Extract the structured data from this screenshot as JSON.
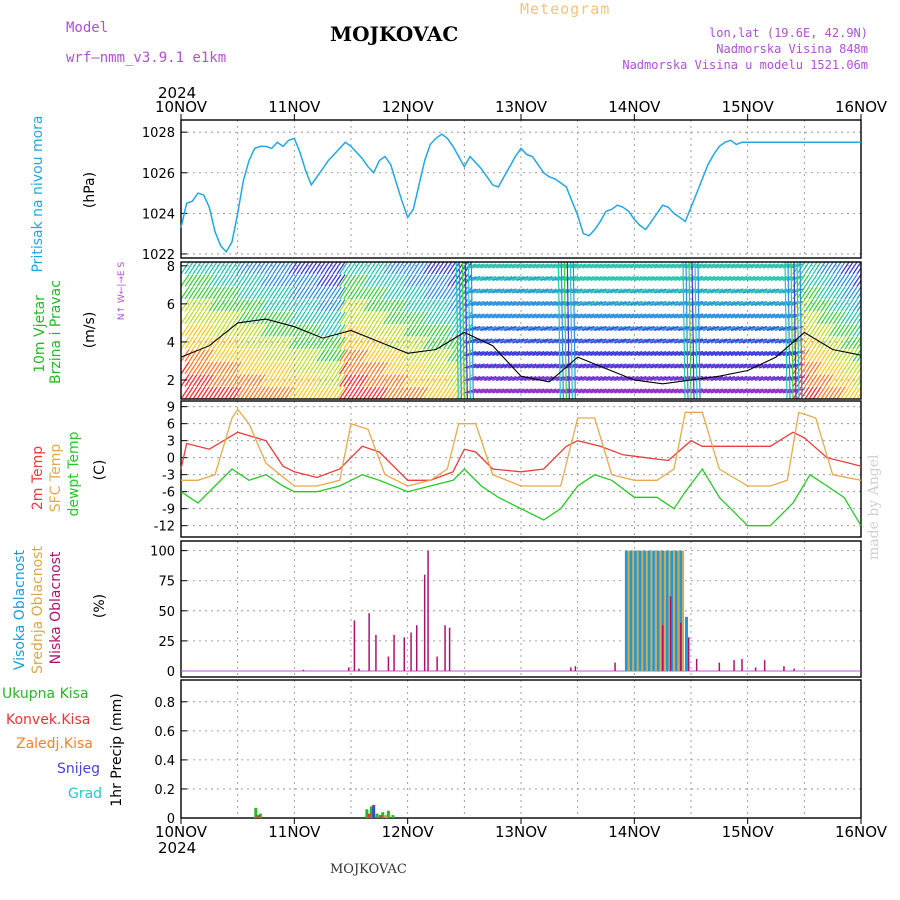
{
  "header": {
    "station": "MOJKOVAC",
    "meteogram": "Meteogram",
    "model_label": "Model",
    "model_value": "wrf–nmm_v3.9.1  e1km",
    "lonlat": "lon,lat (19.6E, 42.9N)",
    "altitude": "Nadmorska Visina 848m",
    "model_altitude": "Nadmorska Visina u modelu 1521.06m",
    "year_top": "2024",
    "year_bottom": "2024",
    "footer_station": "MOJKOVAC",
    "credit": "made by Angel"
  },
  "axis_labels": {
    "pressure": [
      "Pritisak na nivou mora",
      "(hPa)"
    ],
    "wind": [
      "10m Vjetar",
      "Brzina i Pravac",
      "(m/s)"
    ],
    "compass": "N↑ W←|→E S",
    "temp": [
      "2m Temp",
      "SFC Temp",
      "dewpt Temp",
      "(C)"
    ],
    "cloud": [
      "Visoka Oblacnost",
      "Srednja Oblacnost",
      "Niska Oblacnost",
      "(%)"
    ],
    "precip": [
      "Ukupna Kisa",
      "Konvek.Kisa",
      "Zaledj.Kisa",
      "Snijeg",
      "Grad",
      "1hr Precip (mm)"
    ]
  },
  "colors": {
    "pressure": "#1fa7e8",
    "wind_speed": "#000000",
    "temp2m": "#ee3b3b",
    "sfc": "#e8a94a",
    "dewpt": "#22cc22",
    "high_cloud": "#1a9cdc",
    "mid_cloud": "#d9a84a",
    "low_cloud": "#b0116e",
    "total_rain": "#22bb22",
    "conv_rain": "#ee3333",
    "frz_rain": "#ff7f27",
    "snow": "#4444dd",
    "hail": "#22c7c7"
  },
  "chart_data": [
    {
      "type": "line",
      "panel": "pressure",
      "x_ticks": [
        "10NOV",
        "11NOV",
        "12NOV",
        "13NOV",
        "14NOV",
        "15NOV",
        "16NOV"
      ],
      "ylim": [
        1021.8,
        1028.6
      ],
      "yticks": [
        1022,
        1024,
        1026,
        1028
      ],
      "grid": true,
      "series": [
        {
          "x": [
            0,
            0.05,
            0.1,
            0.15,
            0.2,
            0.25,
            0.3,
            0.35,
            0.4,
            0.45,
            0.5,
            0.55,
            0.6,
            0.65,
            0.7,
            0.75,
            0.8,
            0.85,
            0.9,
            0.95,
            1,
            1.05,
            1.1,
            1.15,
            1.2,
            1.25,
            1.3,
            1.35,
            1.4,
            1.45,
            1.5,
            1.55,
            1.6,
            1.65,
            1.7,
            1.75,
            1.8,
            1.85,
            1.9,
            1.95,
            2,
            2.05,
            2.1,
            2.15,
            2.2,
            2.25,
            2.3,
            2.35,
            2.4,
            2.45,
            2.5,
            2.55,
            2.6,
            2.65,
            2.7,
            2.75,
            2.8,
            2.85,
            2.9,
            2.95,
            3,
            3.05,
            3.1,
            3.15,
            3.2,
            3.25,
            3.3,
            3.35,
            3.4,
            3.45,
            3.5,
            3.55,
            3.6,
            3.65,
            3.7,
            3.75,
            3.8,
            3.85,
            3.9,
            3.95,
            4,
            4.05,
            4.1,
            4.15,
            4.2,
            4.25,
            4.3,
            4.35,
            4.4,
            4.45,
            4.5,
            4.55,
            4.6,
            4.65,
            4.7,
            4.75,
            4.8,
            4.85,
            4.9,
            4.95,
            5,
            5.05,
            5.1,
            5.15,
            5.2,
            5.25,
            5.3,
            5.35,
            5.4,
            5.45,
            5.5,
            5.55,
            5.6,
            5.65,
            5.7,
            5.75,
            5.8,
            5.85,
            5.9,
            5.95,
            6
          ],
          "y": [
            1023.3,
            1024.5,
            1024.6,
            1025.0,
            1024.9,
            1024.3,
            1023.1,
            1022.4,
            1022.1,
            1022.6,
            1024.0,
            1025.6,
            1026.6,
            1027.2,
            1027.3,
            1027.3,
            1027.2,
            1027.5,
            1027.3,
            1027.6,
            1027.7,
            1027.0,
            1026.1,
            1025.4,
            1025.8,
            1026.2,
            1026.6,
            1026.9,
            1027.2,
            1027.5,
            1027.3,
            1027.0,
            1026.7,
            1026.3,
            1026.0,
            1026.6,
            1026.8,
            1026.4,
            1025.5,
            1024.6,
            1023.8,
            1024.2,
            1025.4,
            1026.6,
            1027.4,
            1027.7,
            1027.9,
            1027.7,
            1027.3,
            1026.8,
            1026.3,
            1026.8,
            1026.5,
            1026.2,
            1025.8,
            1025.4,
            1025.3,
            1025.8,
            1026.3,
            1026.8,
            1027.2,
            1026.9,
            1026.8,
            1026.4,
            1026.0,
            1025.8,
            1025.7,
            1025.5,
            1025.3,
            1024.6,
            1023.9,
            1023.0,
            1022.9,
            1023.2,
            1023.6,
            1024.1,
            1024.2,
            1024.4,
            1024.3,
            1024.1,
            1023.7,
            1023.4,
            1023.2,
            1023.6,
            1024.0,
            1024.4,
            1024.3,
            1024.0,
            1023.8,
            1023.6,
            1024.3,
            1025.0,
            1025.7,
            1026.4,
            1026.9,
            1027.3,
            1027.5,
            1027.6,
            1027.4,
            1027.5,
            1027.5,
            1027.5,
            1027.5,
            1027.5,
            1027.5,
            1027.5,
            1027.5,
            1027.5,
            1027.5,
            1027.5,
            1027.5,
            1027.5,
            1027.5,
            1027.5,
            1027.5,
            1027.5,
            1027.5,
            1027.5,
            1027.5,
            1027.5,
            1027.5
          ]
        }
      ]
    },
    {
      "type": "line",
      "panel": "wind",
      "ylim": [
        1.0,
        8.2
      ],
      "yticks": [
        2,
        4,
        6,
        8
      ],
      "grid": true,
      "series": [
        {
          "name": "speed",
          "x": [
            0,
            0.25,
            0.5,
            0.75,
            1,
            1.25,
            1.5,
            1.75,
            2,
            2.25,
            2.5,
            2.75,
            3,
            3.25,
            3.5,
            3.75,
            4,
            4.25,
            4.5,
            4.75,
            5,
            5.25,
            5.5,
            5.75,
            6
          ],
          "y": [
            3.2,
            3.8,
            5.0,
            5.2,
            4.8,
            4.2,
            4.6,
            4.0,
            3.4,
            3.6,
            4.5,
            3.8,
            2.2,
            1.9,
            3.2,
            2.6,
            2.0,
            1.8,
            2.0,
            2.2,
            2.5,
            3.2,
            4.5,
            3.6,
            3.3
          ]
        }
      ],
      "wind_bands": [
        {
          "x0": 0.0,
          "x1": 1.4,
          "dir": "SW"
        },
        {
          "x0": 1.4,
          "x1": 2.5,
          "dir": "SW"
        },
        {
          "x0": 2.5,
          "x1": 3.4,
          "dir": "NE"
        },
        {
          "x0": 3.4,
          "x1": 4.5,
          "dir": "NE"
        },
        {
          "x0": 4.5,
          "x1": 5.4,
          "dir": "NE"
        },
        {
          "x0": 5.4,
          "x1": 6.0,
          "dir": "SW"
        }
      ]
    },
    {
      "type": "line",
      "panel": "temperature",
      "ylim": [
        -14,
        10
      ],
      "yticks": [
        9,
        6,
        3,
        0,
        -3,
        -6,
        -9,
        -12
      ],
      "grid": true,
      "series": [
        {
          "name": "2m Temp",
          "x": [
            0,
            0.05,
            0.25,
            0.5,
            0.75,
            0.9,
            1,
            1.2,
            1.4,
            1.6,
            1.75,
            2,
            2.2,
            2.4,
            2.5,
            2.6,
            2.75,
            3,
            3.2,
            3.4,
            3.5,
            3.7,
            3.9,
            4.1,
            4.3,
            4.5,
            4.6,
            4.8,
            5,
            5.2,
            5.4,
            5.5,
            5.7,
            5.9,
            6
          ],
          "y": [
            -2.0,
            2.5,
            1.5,
            4.5,
            3.0,
            -1.5,
            -2.5,
            -3.5,
            -2.0,
            2.0,
            1.0,
            -4.0,
            -4.0,
            -2.5,
            1.5,
            1.0,
            -2.0,
            -2.5,
            -2.0,
            2.0,
            3.0,
            2.0,
            0.5,
            0.0,
            -0.5,
            3.0,
            2.0,
            2.0,
            2.0,
            2.0,
            4.5,
            3.5,
            0.0,
            -1.0,
            -1.5
          ]
        },
        {
          "name": "SFC Temp",
          "x": [
            0,
            0.15,
            0.3,
            0.45,
            0.5,
            0.6,
            0.75,
            1,
            1.2,
            1.4,
            1.5,
            1.65,
            1.8,
            2,
            2.2,
            2.35,
            2.45,
            2.6,
            2.75,
            3,
            3.2,
            3.35,
            3.5,
            3.65,
            3.8,
            4,
            4.2,
            4.35,
            4.45,
            4.6,
            4.75,
            5,
            5.2,
            5.35,
            5.45,
            5.6,
            5.75,
            6
          ],
          "y": [
            -4,
            -4,
            -3,
            7,
            8.5,
            6,
            -1,
            -5,
            -5,
            -4,
            6,
            5,
            -3,
            -5,
            -4,
            -2,
            6,
            6,
            -3,
            -5,
            -5,
            -5,
            7,
            7,
            -3,
            -4,
            -4,
            -2,
            8,
            8,
            -2,
            -5,
            -5,
            -4,
            8,
            7,
            -3,
            -4
          ]
        },
        {
          "name": "dewpt Temp",
          "x": [
            0,
            0.15,
            0.3,
            0.45,
            0.6,
            0.75,
            0.9,
            1,
            1.2,
            1.4,
            1.6,
            1.75,
            2,
            2.2,
            2.4,
            2.5,
            2.65,
            2.8,
            3,
            3.2,
            3.35,
            3.5,
            3.65,
            3.8,
            4,
            4.2,
            4.35,
            4.45,
            4.6,
            4.75,
            4.9,
            5,
            5.2,
            5.4,
            5.55,
            5.7,
            5.85,
            6
          ],
          "y": [
            -6,
            -8,
            -5,
            -2,
            -4,
            -3,
            -5,
            -6,
            -6,
            -5,
            -3,
            -4,
            -6,
            -5,
            -4,
            -2,
            -5,
            -7,
            -9,
            -11,
            -9,
            -5,
            -3,
            -4,
            -7,
            -7,
            -9,
            -6,
            -2,
            -7,
            -10,
            -12,
            -12,
            -8,
            -3,
            -5,
            -7,
            -12
          ]
        }
      ]
    },
    {
      "type": "bar",
      "panel": "cloud",
      "ylim": [
        -5,
        108
      ],
      "yticks": [
        0,
        25,
        50,
        75,
        100
      ],
      "grid": true,
      "series": [
        {
          "name": "Niska Oblacnost",
          "x": [
            1.08,
            1.48,
            1.53,
            1.57,
            1.66,
            1.72,
            1.83,
            1.88,
            1.97,
            2.03,
            2.08,
            2.15,
            2.18,
            2.26,
            2.33,
            2.37,
            3.44,
            3.48,
            3.83,
            4.25,
            4.32,
            4.41,
            4.48,
            4.55,
            4.75,
            4.88,
            4.95,
            5.07,
            5.15,
            5.32,
            5.41
          ],
          "values": [
            1,
            3,
            42,
            2,
            48,
            30,
            12,
            30,
            28,
            32,
            38,
            80,
            100,
            12,
            38,
            36,
            3,
            4,
            7,
            38,
            62,
            40,
            28,
            10,
            7,
            9,
            10,
            3,
            9,
            4,
            2
          ]
        },
        {
          "name": "Srednja Oblacnost",
          "x": [
            3.95,
            3.99,
            4.03,
            4.07,
            4.11,
            4.15,
            4.19,
            4.23,
            4.27,
            4.31,
            4.35,
            4.39,
            4.43
          ],
          "values": [
            100,
            100,
            100,
            100,
            100,
            100,
            100,
            100,
            100,
            100,
            100,
            100,
            100
          ]
        },
        {
          "name": "Visoka Oblacnost",
          "x": [
            3.93,
            3.97,
            4.01,
            4.05,
            4.09,
            4.13,
            4.17,
            4.21,
            4.25,
            4.29,
            4.33,
            4.37,
            4.41,
            4.46
          ],
          "values": [
            100,
            100,
            100,
            100,
            100,
            100,
            100,
            100,
            100,
            100,
            100,
            100,
            100,
            45
          ]
        }
      ]
    },
    {
      "type": "bar",
      "panel": "precip",
      "ylim": [
        0,
        0.95
      ],
      "yticks": [
        0,
        0.2,
        0.4,
        0.6,
        0.8
      ],
      "grid": true,
      "series": [
        {
          "name": "Ukupna Kisa",
          "x": [
            0.66,
            0.7,
            1.64,
            1.68,
            1.73,
            1.78,
            1.83,
            1.87
          ],
          "values": [
            0.07,
            0.03,
            0.06,
            0.08,
            0.03,
            0.04,
            0.05,
            0.02
          ]
        },
        {
          "name": "Konvek.Kisa",
          "x": [
            0.68,
            1.66,
            1.76
          ],
          "values": [
            0.02,
            0.03,
            0.02
          ]
        },
        {
          "name": "Zaledj.Kisa",
          "x": [
            1.81
          ],
          "values": [
            0.02
          ]
        },
        {
          "name": "Snijeg",
          "x": [
            1.7
          ],
          "values": [
            0.09
          ]
        }
      ]
    }
  ]
}
